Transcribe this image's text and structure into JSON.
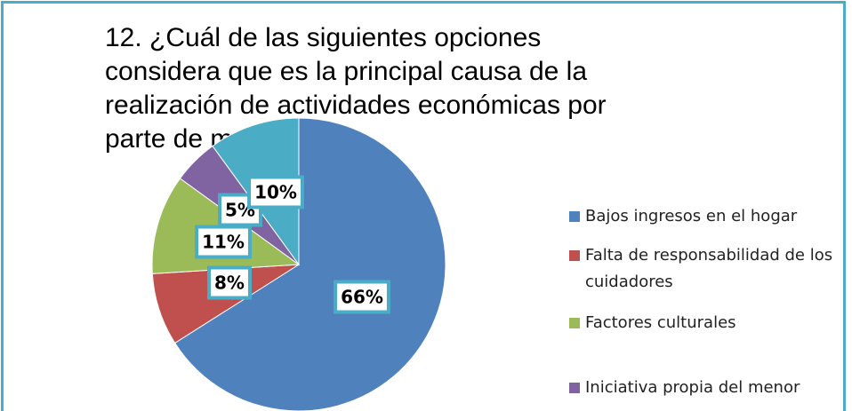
{
  "chart_data": {
    "type": "pie",
    "title": "12. ¿Cuál de las siguientes opciones considera que es la principal causa de la realización de actividades económicas por parte de menores?",
    "categories": [
      "Bajos ingresos en el hogar",
      "Falta de responsabilidad de los cuidadores",
      "Factores culturales",
      "Iniciativa propia del menor",
      null
    ],
    "values": [
      66,
      8,
      11,
      5,
      10
    ],
    "value_labels": [
      "66%",
      "8%",
      "11%",
      "5%",
      "10%"
    ],
    "colors": [
      "#4f81bd",
      "#c0504d",
      "#9bbb59",
      "#8064a2",
      "#4bacc6"
    ],
    "legend": "right"
  }
}
